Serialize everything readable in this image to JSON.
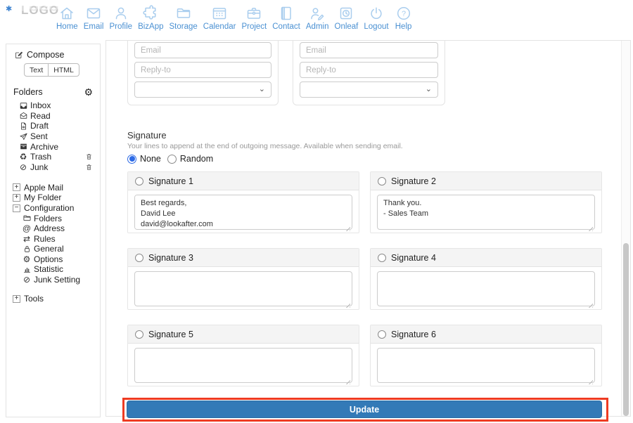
{
  "logo": {
    "text": "LOGO",
    "mark_icon": "asterisk-icon"
  },
  "nav": {
    "items": [
      {
        "label": "Home",
        "icon": "home-icon"
      },
      {
        "label": "Email",
        "icon": "email-icon"
      },
      {
        "label": "Profile",
        "icon": "profile-icon"
      },
      {
        "label": "BizApp",
        "icon": "puzzle-icon"
      },
      {
        "label": "Storage",
        "icon": "folder-icon"
      },
      {
        "label": "Calendar",
        "icon": "calendar-icon"
      },
      {
        "label": "Project",
        "icon": "briefcase-icon"
      },
      {
        "label": "Contact",
        "icon": "book-icon"
      },
      {
        "label": "Admin",
        "icon": "person-pen-icon"
      },
      {
        "label": "Onleaf",
        "icon": "clock-badge-icon"
      },
      {
        "label": "Logout",
        "icon": "power-icon"
      },
      {
        "label": "Help",
        "icon": "question-icon"
      }
    ]
  },
  "sidebar": {
    "compose": {
      "label": "Compose",
      "icon": "compose-icon"
    },
    "modes": [
      "Text",
      "HTML"
    ],
    "folders_header": {
      "label": "Folders",
      "icon": "gear-icon"
    },
    "folders": [
      {
        "label": "Inbox",
        "icon": "inbox-icon"
      },
      {
        "label": "Read",
        "icon": "envelope-open-icon"
      },
      {
        "label": "Draft",
        "icon": "document-icon"
      },
      {
        "label": "Sent",
        "icon": "paper-plane-icon"
      },
      {
        "label": "Archive",
        "icon": "archive-icon"
      },
      {
        "label": "Trash",
        "icon": "recycle-icon",
        "delete_icon": "trashcan-icon"
      },
      {
        "label": "Junk",
        "icon": "no-entry-icon",
        "delete_icon": "trashcan-icon"
      }
    ],
    "tree": [
      {
        "label": "Apple Mail",
        "state": "collapsed"
      },
      {
        "label": "My Folder",
        "state": "collapsed"
      },
      {
        "label": "Configuration",
        "state": "expanded",
        "children": [
          {
            "label": "Folders",
            "icon": "folder-icon"
          },
          {
            "label": "Address",
            "icon": "at-icon"
          },
          {
            "label": "Rules",
            "icon": "arrows-icon"
          },
          {
            "label": "General",
            "icon": "lock-icon"
          },
          {
            "label": "Options",
            "icon": "gears-icon"
          },
          {
            "label": "Statistic",
            "icon": "chart-icon"
          },
          {
            "label": "Junk Setting",
            "icon": "no-entry-icon"
          }
        ]
      },
      {
        "label": "Tools",
        "state": "collapsed",
        "spaced": true
      }
    ]
  },
  "account_cards": [
    {
      "email_placeholder": "Email",
      "reply_to_placeholder": "Reply-to",
      "sender_value": ""
    },
    {
      "email_placeholder": "Email",
      "reply_to_placeholder": "Reply-to",
      "sender_value": ""
    }
  ],
  "signature": {
    "title": "Signature",
    "description": "Your lines to append at the end of outgoing message. Available when sending email.",
    "modes": [
      {
        "label": "None",
        "checked": true
      },
      {
        "label": "Random",
        "checked": false
      }
    ],
    "slots": [
      {
        "label": "Signature 1",
        "checked": false,
        "value": "Best regards,\nDavid Lee\ndavid@lookafter.com"
      },
      {
        "label": "Signature 2",
        "checked": false,
        "value": "Thank you.\n- Sales Team"
      },
      {
        "label": "Signature 3",
        "checked": false,
        "value": ""
      },
      {
        "label": "Signature 4",
        "checked": false,
        "value": ""
      },
      {
        "label": "Signature 5",
        "checked": false,
        "value": ""
      },
      {
        "label": "Signature 6",
        "checked": false,
        "value": ""
      }
    ],
    "update_label": "Update"
  },
  "annotation": {
    "highlight_color": "#ee3b22"
  },
  "colors": {
    "primary_button": "#337ab7",
    "nav_link": "#4a90d2",
    "radio_accent": "#2e6be6"
  }
}
